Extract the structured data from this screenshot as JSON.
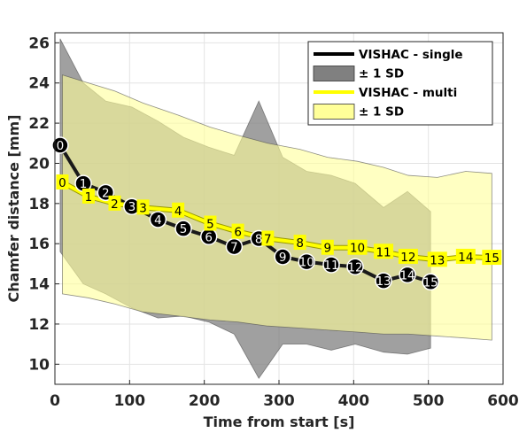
{
  "chart_data": {
    "type": "line",
    "xlabel": "Time from start [s]",
    "ylabel": "Chamfer distance [mm]",
    "xlim": [
      0,
      600
    ],
    "ylim": [
      9,
      26.5
    ],
    "xticks": [
      0,
      100,
      200,
      300,
      400,
      500,
      600
    ],
    "yticks": [
      10,
      12,
      14,
      16,
      18,
      20,
      22,
      24,
      26
    ],
    "grid": true,
    "legend_position": "top-right",
    "legend": [
      {
        "label": "VISHAC - single",
        "kind": "line",
        "color": "#000000"
      },
      {
        "label": "± 1 SD",
        "kind": "patch",
        "color": "#808080"
      },
      {
        "label": "VISHAC - multi",
        "kind": "line",
        "color": "#ffff00"
      },
      {
        "label": "± 1 SD",
        "kind": "patch",
        "color": "#ffff99"
      }
    ],
    "series": [
      {
        "name": "VISHAC - single",
        "color": "#1a1a1a",
        "band_color": "#808080",
        "points": [
          {
            "label": "0",
            "x": 7,
            "y": 20.9
          },
          {
            "label": "1",
            "x": 38,
            "y": 19.0
          },
          {
            "label": "2",
            "x": 68,
            "y": 18.55
          },
          {
            "label": "3",
            "x": 103,
            "y": 17.85
          },
          {
            "label": "4",
            "x": 138,
            "y": 17.2
          },
          {
            "label": "5",
            "x": 172,
            "y": 16.75
          },
          {
            "label": "6",
            "x": 206,
            "y": 16.35
          },
          {
            "label": "7",
            "x": 240,
            "y": 15.85
          },
          {
            "label": "8",
            "x": 273,
            "y": 16.25
          },
          {
            "label": "9",
            "x": 305,
            "y": 15.35
          },
          {
            "label": "10",
            "x": 337,
            "y": 15.1
          },
          {
            "label": "11",
            "x": 370,
            "y": 14.95
          },
          {
            "label": "12",
            "x": 402,
            "y": 14.85
          },
          {
            "label": "13",
            "x": 440,
            "y": 14.15
          },
          {
            "label": "14",
            "x": 472,
            "y": 14.45
          },
          {
            "label": "15",
            "x": 503,
            "y": 14.1
          }
        ],
        "band_upper": [
          [
            7,
            26.2
          ],
          [
            38,
            24.0
          ],
          [
            68,
            23.1
          ],
          [
            103,
            22.8
          ],
          [
            138,
            22.1
          ],
          [
            172,
            21.3
          ],
          [
            206,
            20.8
          ],
          [
            240,
            20.4
          ],
          [
            273,
            23.1
          ],
          [
            305,
            20.3
          ],
          [
            337,
            19.6
          ],
          [
            370,
            19.4
          ],
          [
            402,
            19.0
          ],
          [
            440,
            17.8
          ],
          [
            472,
            18.6
          ],
          [
            503,
            17.6
          ]
        ],
        "band_lower": [
          [
            7,
            15.6
          ],
          [
            38,
            14.0
          ],
          [
            68,
            13.5
          ],
          [
            103,
            12.8
          ],
          [
            138,
            12.3
          ],
          [
            172,
            12.4
          ],
          [
            206,
            12.1
          ],
          [
            240,
            11.5
          ],
          [
            273,
            9.3
          ],
          [
            305,
            11.0
          ],
          [
            337,
            11.0
          ],
          [
            370,
            10.7
          ],
          [
            402,
            11.0
          ],
          [
            440,
            10.6
          ],
          [
            472,
            10.5
          ],
          [
            503,
            10.8
          ]
        ]
      },
      {
        "name": "VISHAC - multi",
        "color": "#ffff00",
        "band_color": "#ffff99",
        "points": [
          {
            "label": "0",
            "x": 10,
            "y": 19.05
          },
          {
            "label": "1",
            "x": 45,
            "y": 18.35
          },
          {
            "label": "2",
            "x": 80,
            "y": 18.0
          },
          {
            "label": "3",
            "x": 118,
            "y": 17.8
          },
          {
            "label": "4",
            "x": 165,
            "y": 17.65
          },
          {
            "label": "5",
            "x": 208,
            "y": 17.0
          },
          {
            "label": "6",
            "x": 245,
            "y": 16.6
          },
          {
            "label": "7",
            "x": 285,
            "y": 16.25
          },
          {
            "label": "8",
            "x": 328,
            "y": 16.05
          },
          {
            "label": "9",
            "x": 365,
            "y": 15.8
          },
          {
            "label": "10",
            "x": 405,
            "y": 15.8
          },
          {
            "label": "11",
            "x": 440,
            "y": 15.6
          },
          {
            "label": "12",
            "x": 473,
            "y": 15.35
          },
          {
            "label": "13",
            "x": 512,
            "y": 15.2
          },
          {
            "label": "14",
            "x": 550,
            "y": 15.35
          },
          {
            "label": "15",
            "x": 585,
            "y": 15.3
          }
        ],
        "band_upper": [
          [
            10,
            24.4
          ],
          [
            45,
            24.0
          ],
          [
            80,
            23.6
          ],
          [
            118,
            23.0
          ],
          [
            165,
            22.4
          ],
          [
            208,
            21.8
          ],
          [
            245,
            21.4
          ],
          [
            285,
            21.0
          ],
          [
            328,
            20.7
          ],
          [
            365,
            20.3
          ],
          [
            405,
            20.1
          ],
          [
            440,
            19.8
          ],
          [
            473,
            19.4
          ],
          [
            512,
            19.3
          ],
          [
            550,
            19.6
          ],
          [
            585,
            19.5
          ]
        ],
        "band_lower": [
          [
            10,
            13.5
          ],
          [
            45,
            13.3
          ],
          [
            80,
            13.0
          ],
          [
            118,
            12.6
          ],
          [
            165,
            12.4
          ],
          [
            208,
            12.2
          ],
          [
            245,
            12.1
          ],
          [
            285,
            11.9
          ],
          [
            328,
            11.8
          ],
          [
            365,
            11.7
          ],
          [
            405,
            11.6
          ],
          [
            440,
            11.5
          ],
          [
            473,
            11.5
          ],
          [
            512,
            11.4
          ],
          [
            550,
            11.3
          ],
          [
            585,
            11.2
          ]
        ]
      }
    ]
  }
}
